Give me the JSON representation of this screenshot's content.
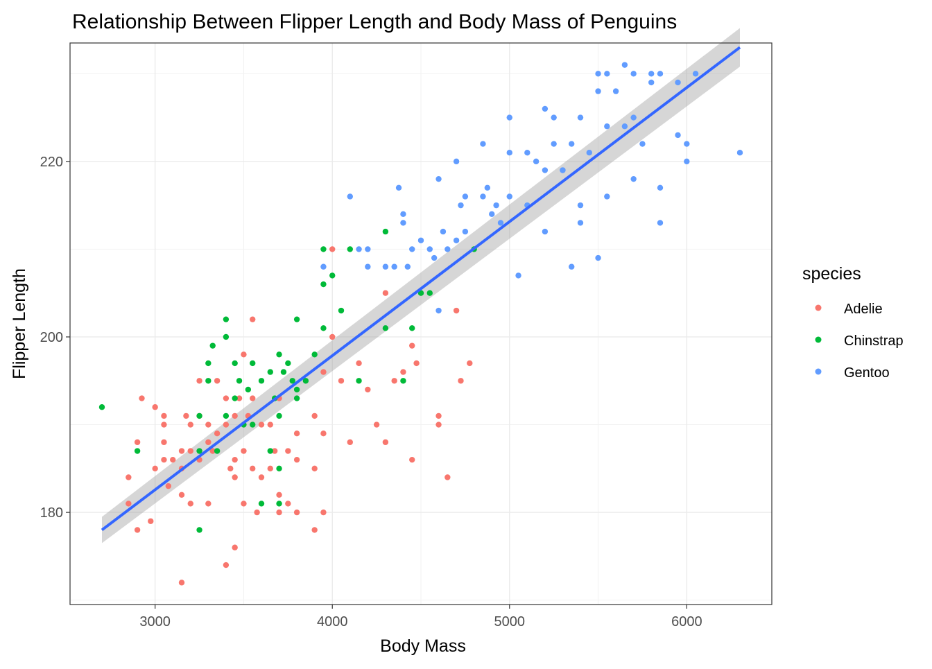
{
  "chart_data": {
    "type": "scatter",
    "title": "Relationship Between Flipper Length and Body Mass of Penguins",
    "xlabel": "Body Mass",
    "ylabel": "Flipper Length",
    "xlim": [
      2520,
      6480
    ],
    "ylim": [
      169.5,
      233.5
    ],
    "x_ticks": [
      3000,
      4000,
      5000,
      6000
    ],
    "y_ticks": [
      180,
      200,
      220
    ],
    "x_minor": [
      2500,
      3500,
      4500,
      5500
    ],
    "y_minor": [
      170,
      190,
      210,
      230
    ],
    "grid": true,
    "legend": {
      "title": "species",
      "position": "right",
      "entries": [
        {
          "name": "Adelie",
          "color": "#F8766D"
        },
        {
          "name": "Chinstrap",
          "color": "#00BA38"
        },
        {
          "name": "Gentoo",
          "color": "#619CFF"
        }
      ]
    },
    "series": [
      {
        "name": "Adelie",
        "color": "#F8766D",
        "points": [
          [
            2850,
            181
          ],
          [
            2850,
            184
          ],
          [
            2900,
            178
          ],
          [
            2900,
            188
          ],
          [
            2925,
            193
          ],
          [
            2975,
            179
          ],
          [
            3000,
            185
          ],
          [
            3000,
            192
          ],
          [
            3050,
            190
          ],
          [
            3050,
            191
          ],
          [
            3050,
            186
          ],
          [
            3050,
            188
          ],
          [
            3075,
            183
          ],
          [
            3100,
            186
          ],
          [
            3150,
            187
          ],
          [
            3150,
            185
          ],
          [
            3150,
            182
          ],
          [
            3150,
            172
          ],
          [
            3175,
            191
          ],
          [
            3200,
            181
          ],
          [
            3200,
            190
          ],
          [
            3200,
            187
          ],
          [
            3250,
            195
          ],
          [
            3250,
            186
          ],
          [
            3250,
            191
          ],
          [
            3300,
            188
          ],
          [
            3300,
            190
          ],
          [
            3300,
            181
          ],
          [
            3325,
            187
          ],
          [
            3350,
            195
          ],
          [
            3350,
            189
          ],
          [
            3400,
            190
          ],
          [
            3400,
            193
          ],
          [
            3400,
            174
          ],
          [
            3425,
            185
          ],
          [
            3450,
            186
          ],
          [
            3450,
            176
          ],
          [
            3450,
            184
          ],
          [
            3450,
            191
          ],
          [
            3475,
            193
          ],
          [
            3500,
            198
          ],
          [
            3500,
            187
          ],
          [
            3500,
            181
          ],
          [
            3525,
            191
          ],
          [
            3550,
            202
          ],
          [
            3550,
            185
          ],
          [
            3550,
            193
          ],
          [
            3575,
            180
          ],
          [
            3600,
            184
          ],
          [
            3600,
            190
          ],
          [
            3650,
            190
          ],
          [
            3650,
            185
          ],
          [
            3675,
            187
          ],
          [
            3700,
            193
          ],
          [
            3700,
            182
          ],
          [
            3700,
            180
          ],
          [
            3750,
            181
          ],
          [
            3750,
            187
          ],
          [
            3800,
            180
          ],
          [
            3800,
            189
          ],
          [
            3800,
            186
          ],
          [
            3900,
            178
          ],
          [
            3900,
            185
          ],
          [
            3900,
            191
          ],
          [
            3950,
            196
          ],
          [
            3950,
            180
          ],
          [
            3950,
            189
          ],
          [
            4000,
            200
          ],
          [
            4000,
            210
          ],
          [
            4050,
            195
          ],
          [
            4100,
            188
          ],
          [
            4150,
            197
          ],
          [
            4200,
            194
          ],
          [
            4250,
            190
          ],
          [
            4300,
            188
          ],
          [
            4300,
            205
          ],
          [
            4350,
            195
          ],
          [
            4400,
            196
          ],
          [
            4450,
            186
          ],
          [
            4450,
            199
          ],
          [
            4475,
            197
          ],
          [
            4600,
            191
          ],
          [
            4600,
            190
          ],
          [
            4650,
            184
          ],
          [
            4700,
            203
          ],
          [
            4725,
            195
          ],
          [
            4775,
            197
          ]
        ]
      },
      {
        "name": "Chinstrap",
        "color": "#00BA38",
        "points": [
          [
            2700,
            192
          ],
          [
            2900,
            187
          ],
          [
            3250,
            178
          ],
          [
            3250,
            191
          ],
          [
            3250,
            187
          ],
          [
            3300,
            197
          ],
          [
            3300,
            195
          ],
          [
            3325,
            199
          ],
          [
            3350,
            187
          ],
          [
            3400,
            200
          ],
          [
            3400,
            202
          ],
          [
            3400,
            191
          ],
          [
            3450,
            197
          ],
          [
            3450,
            193
          ],
          [
            3475,
            195
          ],
          [
            3500,
            190
          ],
          [
            3525,
            194
          ],
          [
            3550,
            197
          ],
          [
            3550,
            190
          ],
          [
            3600,
            195
          ],
          [
            3600,
            181
          ],
          [
            3650,
            196
          ],
          [
            3650,
            187
          ],
          [
            3675,
            193
          ],
          [
            3700,
            198
          ],
          [
            3700,
            191
          ],
          [
            3700,
            185
          ],
          [
            3700,
            181
          ],
          [
            3725,
            196
          ],
          [
            3750,
            197
          ],
          [
            3775,
            195
          ],
          [
            3800,
            202
          ],
          [
            3800,
            194
          ],
          [
            3800,
            193
          ],
          [
            3850,
            195
          ],
          [
            3900,
            198
          ],
          [
            3950,
            210
          ],
          [
            3950,
            206
          ],
          [
            3950,
            201
          ],
          [
            4000,
            207
          ],
          [
            4050,
            203
          ],
          [
            4100,
            210
          ],
          [
            4150,
            195
          ],
          [
            4300,
            212
          ],
          [
            4300,
            201
          ],
          [
            4400,
            195
          ],
          [
            4450,
            201
          ],
          [
            4500,
            205
          ],
          [
            4550,
            205
          ],
          [
            4800,
            210
          ]
        ]
      },
      {
        "name": "Gentoo",
        "color": "#619CFF",
        "points": [
          [
            3950,
            208
          ],
          [
            4100,
            216
          ],
          [
            4150,
            210
          ],
          [
            4200,
            210
          ],
          [
            4200,
            208
          ],
          [
            4300,
            208
          ],
          [
            4350,
            208
          ],
          [
            4375,
            217
          ],
          [
            4400,
            213
          ],
          [
            4400,
            214
          ],
          [
            4425,
            208
          ],
          [
            4450,
            210
          ],
          [
            4500,
            211
          ],
          [
            4550,
            210
          ],
          [
            4575,
            209
          ],
          [
            4600,
            218
          ],
          [
            4600,
            203
          ],
          [
            4625,
            212
          ],
          [
            4650,
            210
          ],
          [
            4700,
            211
          ],
          [
            4700,
            220
          ],
          [
            4725,
            215
          ],
          [
            4750,
            216
          ],
          [
            4750,
            212
          ],
          [
            4850,
            222
          ],
          [
            4850,
            216
          ],
          [
            4875,
            217
          ],
          [
            4900,
            214
          ],
          [
            4925,
            215
          ],
          [
            4950,
            213
          ],
          [
            5000,
            225
          ],
          [
            5000,
            221
          ],
          [
            5000,
            216
          ],
          [
            5050,
            207
          ],
          [
            5100,
            221
          ],
          [
            5100,
            215
          ],
          [
            5150,
            220
          ],
          [
            5200,
            226
          ],
          [
            5200,
            219
          ],
          [
            5200,
            212
          ],
          [
            5250,
            225
          ],
          [
            5250,
            222
          ],
          [
            5300,
            219
          ],
          [
            5300,
            219
          ],
          [
            5350,
            222
          ],
          [
            5350,
            208
          ],
          [
            5400,
            225
          ],
          [
            5400,
            215
          ],
          [
            5400,
            213
          ],
          [
            5450,
            221
          ],
          [
            5500,
            230
          ],
          [
            5500,
            228
          ],
          [
            5500,
            209
          ],
          [
            5550,
            230
          ],
          [
            5550,
            224
          ],
          [
            5550,
            216
          ],
          [
            5600,
            228
          ],
          [
            5650,
            231
          ],
          [
            5650,
            224
          ],
          [
            5700,
            230
          ],
          [
            5700,
            225
          ],
          [
            5700,
            218
          ],
          [
            5750,
            222
          ],
          [
            5800,
            230
          ],
          [
            5800,
            229
          ],
          [
            5850,
            230
          ],
          [
            5850,
            217
          ],
          [
            5850,
            213
          ],
          [
            5950,
            229
          ],
          [
            5950,
            223
          ],
          [
            6000,
            222
          ],
          [
            6000,
            220
          ],
          [
            6050,
            230
          ],
          [
            6300,
            221
          ]
        ]
      }
    ],
    "smooth": {
      "name": "linear fit",
      "color": "#3366FF",
      "band_color": "#999999",
      "x": [
        2700,
        6300
      ],
      "y": [
        178.0,
        233.0
      ],
      "band": [
        [
          178.0,
          176.5,
          179.5
        ],
        [
          233.0,
          230.8,
          235.2
        ]
      ]
    }
  }
}
